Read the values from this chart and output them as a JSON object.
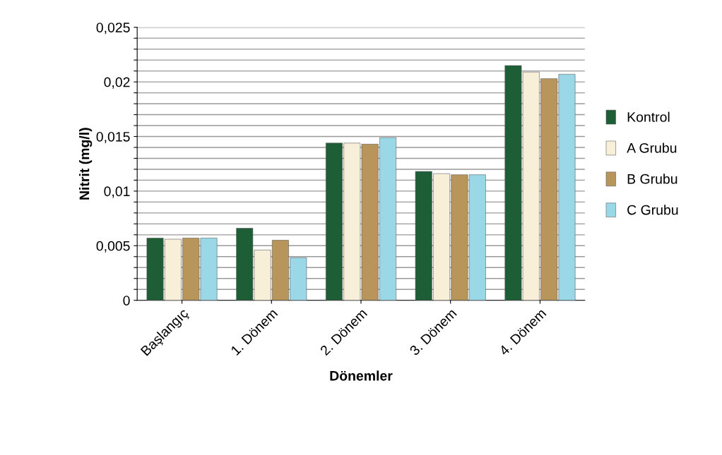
{
  "chart_data": {
    "type": "bar",
    "xlabel": "Dönemler",
    "ylabel": "Nitrit (mg/l)",
    "categories": [
      "Başlangıç",
      "1. Dönem",
      "2. Dönem",
      "3. Dönem",
      "4. Dönem"
    ],
    "series": [
      {
        "name": "Kontrol",
        "color": "#1e5e36",
        "values": [
          0.0057,
          0.0066,
          0.0144,
          0.0118,
          0.0215
        ]
      },
      {
        "name": "A Grubu",
        "color": "#f8efd8",
        "values": [
          0.0056,
          0.0046,
          0.0144,
          0.0116,
          0.0209
        ]
      },
      {
        "name": "B Grubu",
        "color": "#b8955a",
        "values": [
          0.0057,
          0.0055,
          0.0143,
          0.0115,
          0.0203
        ]
      },
      {
        "name": "C Grubu",
        "color": "#9ad8e8",
        "values": [
          0.0057,
          0.0039,
          0.0149,
          0.0115,
          0.0207
        ]
      }
    ],
    "ylim": [
      0,
      0.025
    ],
    "yticks": [
      {
        "value": 0,
        "label": "0"
      },
      {
        "value": 0.001,
        "label": null
      },
      {
        "value": 0.002,
        "label": null
      },
      {
        "value": 0.003,
        "label": null
      },
      {
        "value": 0.004,
        "label": null
      },
      {
        "value": 0.005,
        "label": "0,005"
      },
      {
        "value": 0.006,
        "label": null
      },
      {
        "value": 0.007,
        "label": null
      },
      {
        "value": 0.008,
        "label": null
      },
      {
        "value": 0.009,
        "label": null
      },
      {
        "value": 0.01,
        "label": "0,01"
      },
      {
        "value": 0.011,
        "label": null
      },
      {
        "value": 0.012,
        "label": null
      },
      {
        "value": 0.013,
        "label": null
      },
      {
        "value": 0.014,
        "label": null
      },
      {
        "value": 0.015,
        "label": "0,015"
      },
      {
        "value": 0.016,
        "label": null
      },
      {
        "value": 0.017,
        "label": null
      },
      {
        "value": 0.018,
        "label": null
      },
      {
        "value": 0.019,
        "label": null
      },
      {
        "value": 0.02,
        "label": "0,02"
      },
      {
        "value": 0.021,
        "label": null
      },
      {
        "value": 0.022,
        "label": null
      },
      {
        "value": 0.023,
        "label": null
      },
      {
        "value": 0.024,
        "label": null
      },
      {
        "value": 0.025,
        "label": "0,025"
      }
    ],
    "grid": "y",
    "legend": "right"
  }
}
